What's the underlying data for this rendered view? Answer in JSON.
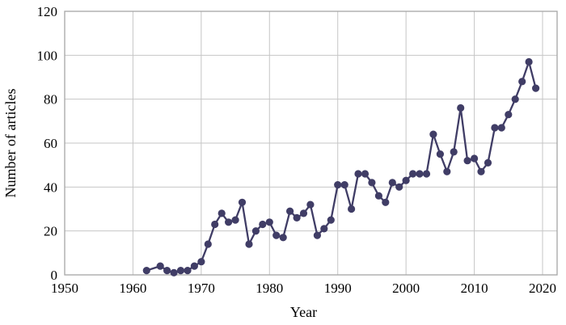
{
  "chart_data": {
    "type": "line",
    "title": "",
    "xlabel": "Year",
    "ylabel": "Number of articles",
    "xlim": [
      1950,
      2020
    ],
    "ylim": [
      0,
      120
    ],
    "x_ticks": [
      1950,
      1960,
      1970,
      1980,
      1990,
      2000,
      2010,
      2020
    ],
    "y_ticks": [
      0,
      20,
      40,
      60,
      80,
      100,
      120
    ],
    "grid": true,
    "legend_position": "none",
    "series": [
      {
        "name": "Number of articles",
        "color": "#403d66",
        "marker": "circle",
        "points": [
          [
            1962,
            2
          ],
          [
            1964,
            4
          ],
          [
            1965,
            2
          ],
          [
            1966,
            1
          ],
          [
            1967,
            2
          ],
          [
            1968,
            2
          ],
          [
            1969,
            4
          ],
          [
            1970,
            6
          ],
          [
            1971,
            14
          ],
          [
            1972,
            23
          ],
          [
            1973,
            28
          ],
          [
            1974,
            24
          ],
          [
            1975,
            25
          ],
          [
            1976,
            33
          ],
          [
            1977,
            14
          ],
          [
            1978,
            20
          ],
          [
            1979,
            23
          ],
          [
            1980,
            24
          ],
          [
            1981,
            18
          ],
          [
            1982,
            17
          ],
          [
            1983,
            29
          ],
          [
            1984,
            26
          ],
          [
            1985,
            28
          ],
          [
            1986,
            32
          ],
          [
            1987,
            18
          ],
          [
            1988,
            21
          ],
          [
            1989,
            25
          ],
          [
            1990,
            41
          ],
          [
            1991,
            41
          ],
          [
            1992,
            30
          ],
          [
            1993,
            46
          ],
          [
            1994,
            46
          ],
          [
            1995,
            42
          ],
          [
            1996,
            36
          ],
          [
            1997,
            33
          ],
          [
            1998,
            42
          ],
          [
            1999,
            40
          ],
          [
            2000,
            43
          ],
          [
            2001,
            46
          ],
          [
            2002,
            46
          ],
          [
            2003,
            46
          ],
          [
            2004,
            64
          ],
          [
            2005,
            55
          ],
          [
            2006,
            47
          ],
          [
            2007,
            56
          ],
          [
            2008,
            76
          ],
          [
            2009,
            52
          ],
          [
            2010,
            53
          ],
          [
            2011,
            47
          ],
          [
            2012,
            51
          ],
          [
            2013,
            67
          ],
          [
            2014,
            67
          ],
          [
            2015,
            73
          ],
          [
            2016,
            80
          ],
          [
            2017,
            88
          ],
          [
            2018,
            97
          ],
          [
            2019,
            85
          ]
        ]
      }
    ]
  },
  "colors": {
    "background": "#ffffff",
    "line": "#403d66",
    "marker": "#403d66",
    "gridline": "#c6c6c6",
    "frame": "#a6a6a6",
    "text": "#000000"
  }
}
